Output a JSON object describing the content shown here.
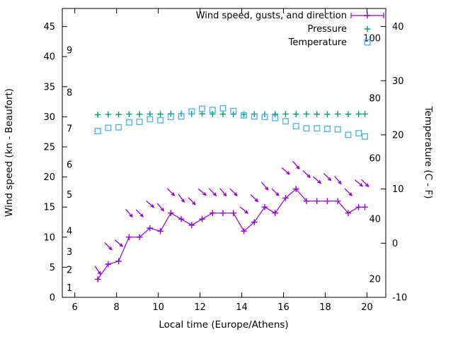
{
  "legend": {
    "items": [
      {
        "label": "Wind speed, gusts, and direction",
        "marker": "line-plus",
        "color": "#9400d3"
      },
      {
        "label": "Pressure",
        "marker": "plus",
        "color": "#009e73"
      },
      {
        "label": "Temperature",
        "marker": "square",
        "color": "#56b4e9"
      }
    ]
  },
  "chart_data": {
    "type": "line",
    "title": "",
    "axes": {
      "x_label": "Local time (Europe/Athens)",
      "y_left_label": "Wind speed (kn - Beaufort)",
      "y_right_label": "Temperature (C - F)",
      "x_ticks": [
        6,
        8,
        10,
        12,
        14,
        16,
        18,
        20
      ],
      "x_lim": [
        5.4,
        20.9
      ],
      "y_left_ticks": [
        0,
        5,
        10,
        15,
        20,
        25,
        30,
        35,
        40,
        45
      ],
      "y_left_lim": [
        0,
        48
      ],
      "y_right_ticks": [
        -10,
        0,
        10,
        20,
        30,
        40
      ],
      "y_right_lim": [
        -10,
        43.3
      ],
      "grid": false,
      "legend_position": "top-right-inside",
      "beaufort_inner_labels": [
        {
          "label": "1",
          "kn": 1.5
        },
        {
          "label": "2",
          "kn": 4.5
        },
        {
          "label": "3",
          "kn": 7.5
        },
        {
          "label": "4",
          "kn": 11
        },
        {
          "label": "5",
          "kn": 17
        },
        {
          "label": "6",
          "kn": 22
        },
        {
          "label": "7",
          "kn": 28
        },
        {
          "label": "8",
          "kn": 34
        },
        {
          "label": "9",
          "kn": 41
        }
      ],
      "fahrenheit_inner_labels": [
        {
          "label": "20",
          "c": -6.7
        },
        {
          "label": "40",
          "c": 4.4
        },
        {
          "label": "60",
          "c": 15.6
        },
        {
          "label": "80",
          "c": 26.7
        },
        {
          "label": "100",
          "c": 37.8
        }
      ]
    },
    "x_hours": [
      7.1,
      7.6,
      8.1,
      8.6,
      9.1,
      9.6,
      10.1,
      10.6,
      11.1,
      11.6,
      12.1,
      12.6,
      13.1,
      13.6,
      14.1,
      14.6,
      15.1,
      15.6,
      16.1,
      16.6,
      17.1,
      17.6,
      18.1,
      18.6,
      19.1,
      19.6,
      19.9
    ],
    "series": [
      {
        "name": "wind-speed",
        "axis": "left",
        "color": "#9400d3",
        "marker": "plus",
        "line": true,
        "values": [
          3,
          5.5,
          6,
          10,
          10,
          11.5,
          11,
          14,
          13,
          12,
          13,
          14,
          14,
          14,
          11,
          12.5,
          15,
          14,
          16.5,
          18,
          16,
          16,
          16,
          16,
          14,
          15,
          15
        ]
      },
      {
        "name": "wind-gusts-direction",
        "axis": "left",
        "color": "#9400d3",
        "marker": "arrow",
        "line": false,
        "values": [
          4.5,
          8.5,
          9,
          14,
          14,
          15.5,
          15,
          17.5,
          16.5,
          16,
          17.5,
          17.5,
          17.5,
          17.5,
          14.5,
          16.5,
          18.5,
          17.5,
          21,
          22,
          20.5,
          19.5,
          20,
          19.5,
          17.5,
          19,
          19
        ],
        "direction_deg": [
          55,
          45,
          40,
          50,
          45,
          40,
          50,
          45,
          55,
          45,
          40,
          45,
          50,
          45,
          40,
          45,
          50,
          45,
          40,
          50,
          45,
          40,
          45,
          50,
          45,
          40,
          45
        ]
      },
      {
        "name": "pressure",
        "axis": "left",
        "color": "#009e73",
        "marker": "plus",
        "line": false,
        "values": [
          30.35,
          30.4,
          30.38,
          30.45,
          30.42,
          30.46,
          30.44,
          30.5,
          30.52,
          30.48,
          30.5,
          30.46,
          30.44,
          30.42,
          30.4,
          30.44,
          30.42,
          30.44,
          30.46,
          30.44,
          30.46,
          30.44,
          30.42,
          30.46,
          30.44,
          30.46,
          30.46
        ]
      },
      {
        "name": "temperature",
        "axis": "right",
        "color": "#56b4e9",
        "marker": "square",
        "line": false,
        "values": [
          20.7,
          21.3,
          21.4,
          22.3,
          22.4,
          22.9,
          22.7,
          23.3,
          23.4,
          24.3,
          24.8,
          24.6,
          24.9,
          24.4,
          23.6,
          23.4,
          23.3,
          23.1,
          22.5,
          21.6,
          21.2,
          21.2,
          21.1,
          21.0,
          20.0,
          20.3,
          19.7
        ]
      }
    ]
  }
}
